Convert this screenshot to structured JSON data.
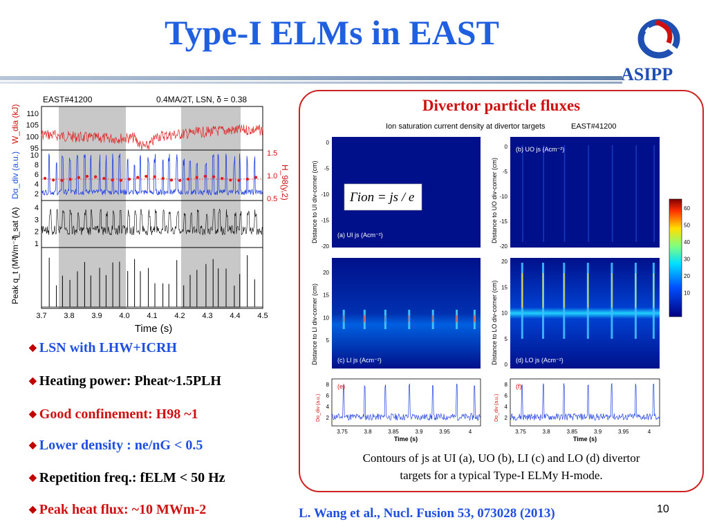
{
  "slide": {
    "title": "Type-I ELMs in EAST",
    "org": "ASIPP",
    "page_number": "10",
    "reference": "L. Wang et al., Nucl. Fusion 53, 073028 (2013)"
  },
  "left_figure": {
    "shot_label": "EAST#41200",
    "params_label": "0.4MA/2T, LSN, δ = 0.38",
    "panel1_ylabel": "W_dia (kJ)",
    "panel1_ticks": [
      "110",
      "105",
      "100",
      "95"
    ],
    "panel2_ylabel": "Dα_div (a.u.)",
    "panel2_ticks": [
      "10",
      "8",
      "6",
      "4",
      "2"
    ],
    "panel2_right_ylabel": "H_98(y,2)",
    "panel2_right_ticks": [
      "1.5",
      "1.0",
      "0.5"
    ],
    "panel3_ylabel": "I_sat (A)",
    "panel3_ticks": [
      "4",
      "3",
      "2",
      "1"
    ],
    "panel4_ylabel": "Peak q_t (MWm⁻²)",
    "x_ticks": [
      "3.7",
      "3.8",
      "3.9",
      "4.0",
      "4.1",
      "4.2",
      "4.3",
      "4.4",
      "4.5"
    ],
    "xlabel": "Time (s)"
  },
  "right_box": {
    "title": "Divertor particle fluxes",
    "figure_header": "Ion saturation current density at divertor targets",
    "shot_label": "EAST#41200",
    "formula": "Γion = js / e",
    "panel_a_label": "(a) UI js (Acm⁻²)",
    "panel_b_label": "(b) UO js (Acm⁻²)",
    "panel_c_label": "(c) LI js (Acm⁻²)",
    "panel_d_label": "(d) LO js (Acm⁻²)",
    "panel_e_label": "(e)",
    "panel_f_label": "(f)",
    "ylabel_a": "Distance to UI div-corner (cm)",
    "ylabel_b": "Distance to UO div-corner (cm)",
    "ylabel_c": "Distance to LI div-corner (cm)",
    "ylabel_d": "Distance to LO div-corner (cm)",
    "ylabel_ef": "Dα_div (a.u.)",
    "ticks_top": [
      "0",
      "-5",
      "-10",
      "-15",
      "-20"
    ],
    "ticks_c": [
      "20",
      "15",
      "10",
      "5"
    ],
    "ticks_d": [
      "20",
      "15",
      "10",
      "5",
      "0"
    ],
    "ticks_ef": [
      "8",
      "6",
      "4",
      "2"
    ],
    "x_ticks": [
      "3.75",
      "3.8",
      "3.85",
      "3.9",
      "3.95",
      "4"
    ],
    "xlabel": "Time (s)",
    "colorbar_ticks": [
      "60",
      "50",
      "40",
      "30",
      "20",
      "10"
    ],
    "caption_line1": "Contours of js at UI (a), UO (b), LI (c) and LO (d) divertor",
    "caption_line2": "targets for a typical Type-I ELMy H-mode."
  },
  "bullets": [
    {
      "text": "LSN with LHW+ICRH",
      "color": "blue"
    },
    {
      "text": "Heating power: Pheat~1.5PLH",
      "color": "black"
    },
    {
      "text": "Good confinement: H98 ~1",
      "color": "red"
    },
    {
      "text": "Lower density : ne/nG < 0.5",
      "color": "blue"
    },
    {
      "text": "Repetition freq.: fELM < 50 Hz",
      "color": "black"
    },
    {
      "text": "Peak heat flux: ~10 MWm-2",
      "color": "red"
    }
  ],
  "colors": {
    "title_blue": "#1f5fe0",
    "accent_red": "#d01010",
    "box_border": "#cc2020"
  }
}
